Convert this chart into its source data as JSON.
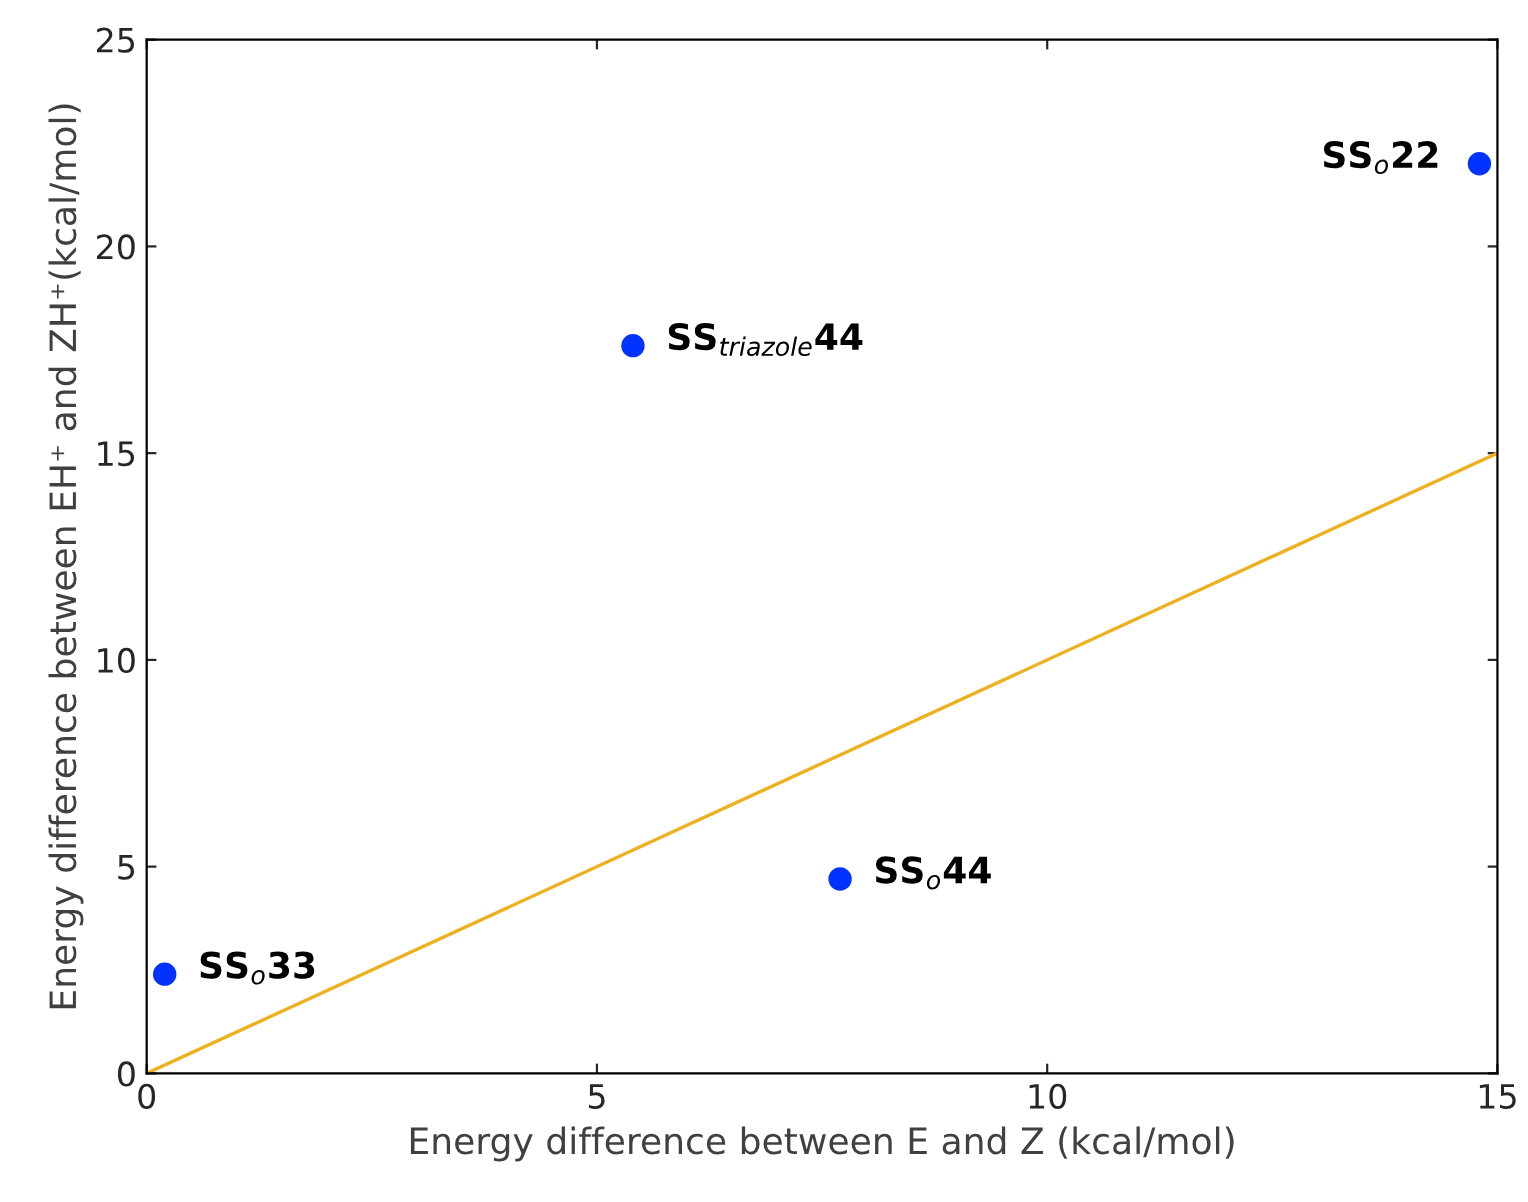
{
  "chart_data": {
    "type": "scatter",
    "xlabel": "Energy difference between E and Z (kcal/mol)",
    "ylabel": "Energy difference between EH⁺ and ZH⁺(kcal/mol)",
    "x": [
      0.2,
      7.7,
      5.4,
      14.8
    ],
    "series": [
      {
        "color": "#0033ff",
        "marker": "circle",
        "values": [
          2.4,
          4.7,
          17.6,
          22.0
        ]
      },
      {
        "type": "line",
        "color": "#edb120",
        "x": [
          0,
          15
        ],
        "values": [
          0,
          15
        ]
      }
    ],
    "annotations": [
      {
        "text": "SS$_{o}$33",
        "x": 0.2,
        "y": 2.4
      },
      {
        "text": "SS$_{o}$44",
        "x": 7.7,
        "y": 4.7
      },
      {
        "text": "SS$_{triazole}$44",
        "x": 5.4,
        "y": 17.6
      },
      {
        "text": "SS$_{o}$22",
        "x": 14.8,
        "y": 22.0
      }
    ],
    "xlim": [
      0,
      15
    ],
    "xticks": [
      0,
      5,
      10,
      15
    ],
    "ylim": [
      0,
      25
    ],
    "yticks": [
      0,
      5,
      10,
      15,
      20,
      25
    ],
    "grid": false,
    "legend": false
  }
}
